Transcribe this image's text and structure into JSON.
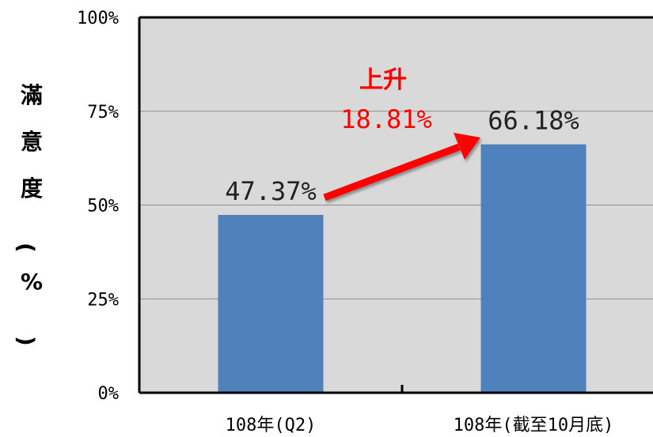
{
  "chart_data": {
    "type": "bar",
    "categories": [
      "108年(Q2)",
      "108年(截至10月底)"
    ],
    "values": [
      47.37,
      66.18
    ],
    "data_labels": [
      "47.37%",
      "66.18%"
    ],
    "ylabel": "滿意度(%)",
    "ylim": [
      0,
      100
    ],
    "yticks": [
      0,
      25,
      50,
      75,
      100
    ],
    "ytick_labels": [
      "0%",
      "25%",
      "50%",
      "75%",
      "100%"
    ],
    "grid": true,
    "annotation": {
      "line1": "上升",
      "line2": "18.81%"
    },
    "colors": {
      "bar": "#4f81bd",
      "plot_bg": "#d9d9d9",
      "arrow": "#ff0000",
      "annotation": "#ff0000"
    }
  }
}
